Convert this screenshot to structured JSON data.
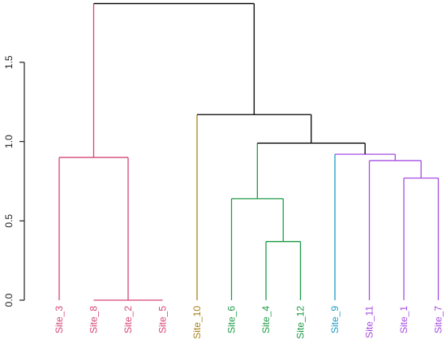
{
  "chart_data": {
    "type": "dendrogram",
    "title": "",
    "xlabel": "",
    "ylabel": "",
    "ylim": [
      0,
      1.9
    ],
    "yticks": [
      0.0,
      0.5,
      1.0,
      1.5
    ],
    "ytick_labels": [
      "0.0",
      "0.5",
      "1.0",
      "1.5"
    ],
    "leaf_order": [
      "Site_3",
      "Site_8",
      "Site_2",
      "Site_5",
      "Site_10",
      "Site_6",
      "Site_4",
      "Site_12",
      "Site_9",
      "Site_11",
      "Site_1",
      "Site_7"
    ],
    "leaves": [
      {
        "label": "Site_3",
        "color": "#d6457a"
      },
      {
        "label": "Site_8",
        "color": "#d6457a"
      },
      {
        "label": "Site_2",
        "color": "#d6457a"
      },
      {
        "label": "Site_5",
        "color": "#d6457a"
      },
      {
        "label": "Site_10",
        "color": "#a8821a"
      },
      {
        "label": "Site_6",
        "color": "#1e9b47"
      },
      {
        "label": "Site_4",
        "color": "#1e9b47"
      },
      {
        "label": "Site_12",
        "color": "#1e9b47"
      },
      {
        "label": "Site_9",
        "color": "#1d9cc4"
      },
      {
        "label": "Site_11",
        "color": "#a64de0"
      },
      {
        "label": "Site_1",
        "color": "#a64de0"
      },
      {
        "label": "Site_7",
        "color": "#a64de0"
      }
    ],
    "merges": [
      {
        "left": "Site_8",
        "right": "Site_5",
        "height": 0.0,
        "color": "#d6457a"
      },
      {
        "left": "Site_3",
        "right": "(Site_8,Site_5)",
        "height": 0.9,
        "color": "#d6457a"
      },
      {
        "left": "Site_4",
        "right": "Site_12",
        "height": 0.37,
        "color": "#1e9b47"
      },
      {
        "left": "Site_6",
        "right": "(Site_4,Site_12)",
        "height": 0.64,
        "color": "#1e9b47"
      },
      {
        "left": "Site_1",
        "right": "Site_7",
        "height": 0.77,
        "color": "#a64de0"
      },
      {
        "left": "Site_11",
        "right": "(Site_1,Site_7)",
        "height": 0.88,
        "color": "#a64de0"
      },
      {
        "left": "Site_9",
        "right": "(Site_11,Site_1,Site_7)",
        "height": 0.92,
        "color": "#a64de0"
      },
      {
        "left": "Site_9 cluster",
        "right": "Site_11 cluster",
        "height": 0.99,
        "color": "#000000"
      },
      {
        "left": "(Site_6,Site_4,Site_12)",
        "right": "(Site_9,Site_11,Site_1,Site_7)",
        "height": 0.99,
        "color": "#000000"
      },
      {
        "left": "Site_10",
        "right": "(Site_6,...,Site_7)",
        "height": 1.17,
        "color": "#000000"
      },
      {
        "left": "(Site_3,Site_8,Site_2,Site_5)",
        "right": "(Site_10,...,Site_7)",
        "height": 1.87,
        "color": "#000000"
      }
    ],
    "grid": false,
    "legend": "none"
  }
}
